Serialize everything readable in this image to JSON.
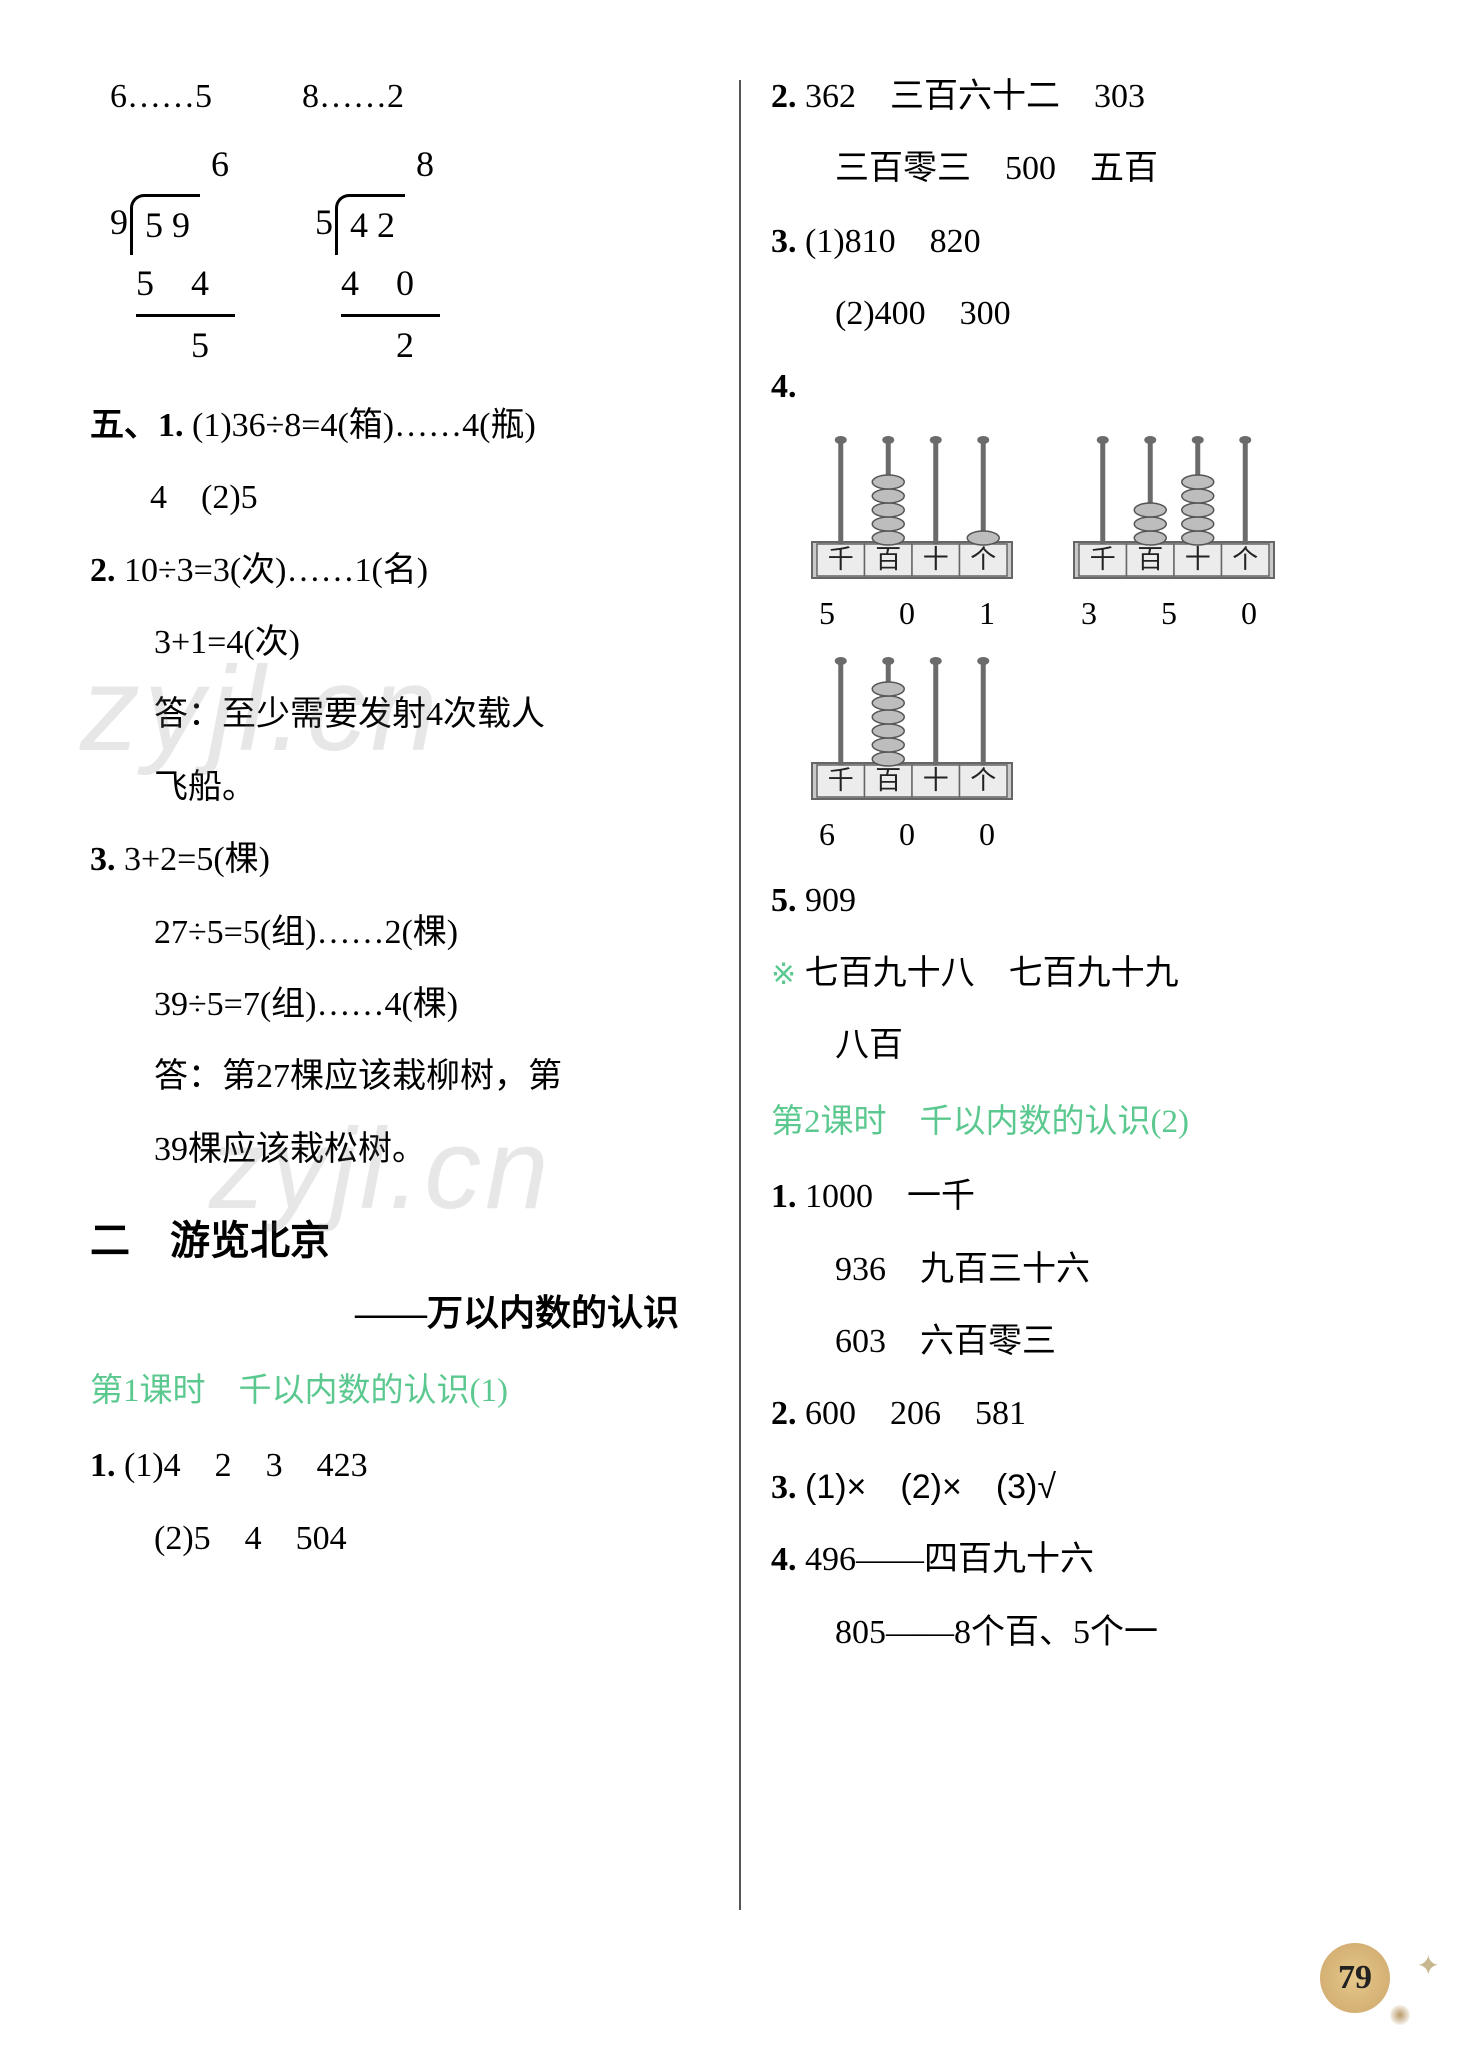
{
  "left": {
    "intro": {
      "a": "6……5",
      "b": "8……2"
    },
    "div1": {
      "quotient": "6",
      "divisor": "9",
      "dividend": "5 9",
      "sub": "5 4",
      "rem": "5"
    },
    "div2": {
      "quotient": "8",
      "divisor": "5",
      "dividend": "4 2",
      "sub": "4 0",
      "rem": "2"
    },
    "q5_label": "五、1.",
    "q5_1a": "(1)36÷8=4(箱)……4(瓶)",
    "q5_1b": "4　(2)5",
    "q5_2_label": "2.",
    "q5_2a": "10÷3=3(次)……1(名)",
    "q5_2b": "3+1=4(次)",
    "q5_2c": "答：至少需要发射4次载人",
    "q5_2d": "飞船。",
    "q5_3_label": "3.",
    "q5_3a": "3+2=5(棵)",
    "q5_3b": "27÷5=5(组)……2(棵)",
    "q5_3c": "39÷5=7(组)……4(棵)",
    "q5_3d": "答：第27棵应该栽柳树，第",
    "q5_3e": "39棵应该栽松树。",
    "sec2_num": "二",
    "sec2_title": "游览北京",
    "sec2_sub": "——万以内数的认识",
    "lesson1": "第1课时　千以内数的认识(1)",
    "l1_1_label": "1.",
    "l1_1a": "(1)4　2　3　423",
    "l1_1b": "(2)5　4　504"
  },
  "right": {
    "r2_label": "2.",
    "r2a": "362　三百六十二　303",
    "r2b": "三百零三　500　五百",
    "r3_label": "3.",
    "r3a": "(1)810　820",
    "r3b": "(2)400　300",
    "r4_label": "4.",
    "abacus": {
      "labels": [
        "千",
        "百",
        "十",
        "个"
      ],
      "a1": {
        "beads": [
          0,
          5,
          0,
          1
        ],
        "num": "5 0 1"
      },
      "a2": {
        "beads": [
          0,
          3,
          5,
          0
        ],
        "num": "3 5 0"
      },
      "a3": {
        "beads": [
          0,
          6,
          0,
          0
        ],
        "num": "6 0 0"
      },
      "rod_color": "#6b6b6b",
      "bead_fill": "#bdbdbd",
      "bead_stroke": "#555",
      "frame_fill": "#c9c9c9",
      "frame_stroke": "#666",
      "label_fill": "#ececec"
    },
    "r5_label": "5.",
    "r5a": "909",
    "star_line1": "七百九十八　七百九十九",
    "star_line2": "八百",
    "lesson2": "第2课时　千以内数的认识(2)",
    "l2_1_label": "1.",
    "l2_1a": "1000　一千",
    "l2_1b": "936　九百三十六",
    "l2_1c": "603　六百零三",
    "l2_2_label": "2.",
    "l2_2a": "600　206　581",
    "l2_3_label": "3.",
    "l2_3a": "(1)×　(2)×　(3)√",
    "l2_4_label": "4.",
    "l2_4a": "496——四百九十六",
    "l2_4b": "805——8个百、5个一"
  },
  "page_number": "79",
  "watermark_text": "zyjl.cn",
  "colors": {
    "lesson_green": "#5bc98f",
    "text": "#1a1a1a",
    "page_badge": "#e6c88a"
  }
}
